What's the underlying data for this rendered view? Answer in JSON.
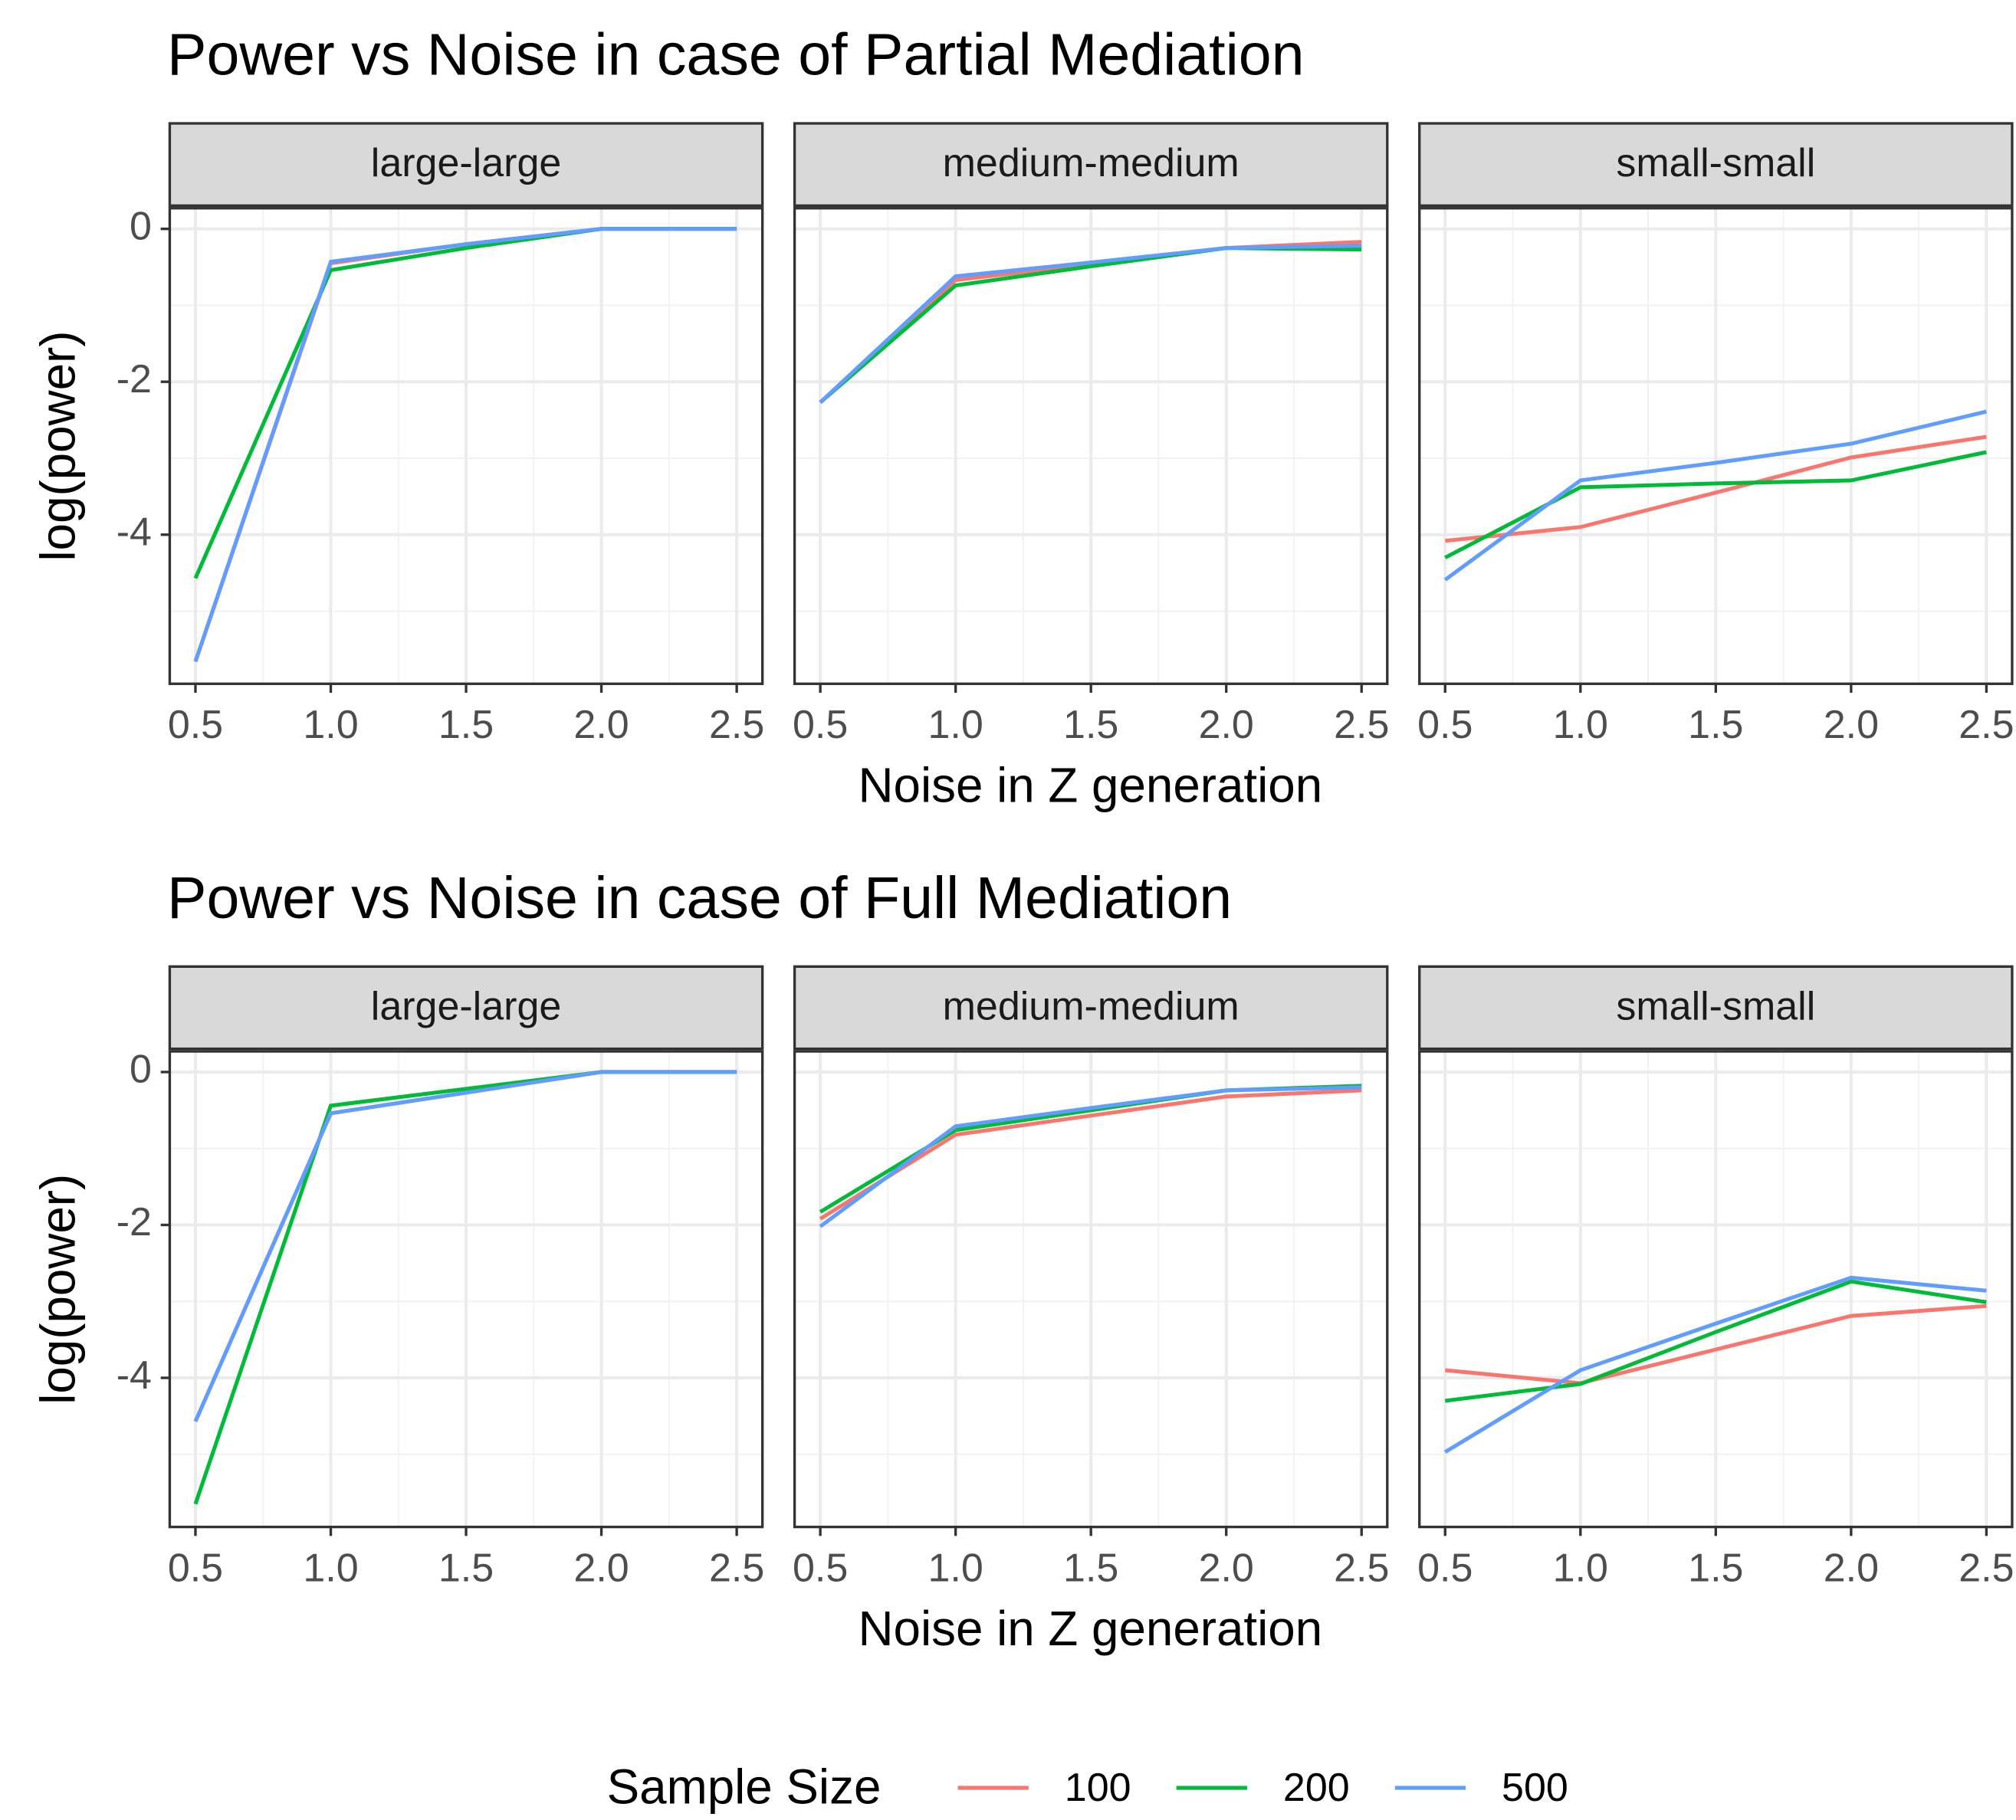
{
  "chart_data": [
    {
      "type": "line",
      "title": "Power vs Noise in case of Partial Mediation",
      "x_label": "Noise in Z generation",
      "y_label": "log(power)",
      "x": [
        0.5,
        1.0,
        1.5,
        2.0,
        2.5
      ],
      "xlim": [
        0.405,
        2.595
      ],
      "xticks": [
        0.5,
        {
          "value": 1,
          "label": "1.0"
        },
        1.5,
        {
          "value": 2,
          "label": "2.0"
        },
        2.5
      ],
      "ylim": [
        -5.95,
        0.27
      ],
      "yticks": [
        -4,
        -2,
        0
      ],
      "grid": true,
      "panels": [
        {
          "name": "large-large",
          "series": [
            {
              "name": "100",
              "color": "#F8766D",
              "values": [
                -5.66,
                -0.45,
                -0.2,
                0,
                0
              ]
            },
            {
              "name": "200",
              "color": "#00BA38",
              "values": [
                -4.57,
                -0.54,
                -0.25,
                0,
                0
              ]
            },
            {
              "name": "500",
              "color": "#619CFF",
              "values": [
                -5.66,
                -0.43,
                -0.2,
                0,
                0
              ]
            }
          ]
        },
        {
          "name": "medium-medium",
          "series": [
            {
              "name": "100",
              "color": "#F8766D",
              "values": [
                -2.27,
                -0.67,
                -0.46,
                -0.25,
                -0.17
              ]
            },
            {
              "name": "200",
              "color": "#00BA38",
              "values": [
                -2.27,
                -0.74,
                -0.49,
                -0.25,
                -0.27
              ]
            },
            {
              "name": "500",
              "color": "#619CFF",
              "values": [
                -2.27,
                -0.62,
                -0.44,
                -0.25,
                -0.22
              ]
            }
          ]
        },
        {
          "name": "small-small",
          "series": [
            {
              "name": "100",
              "color": "#F8766D",
              "values": [
                -4.08,
                -3.9,
                -3.45,
                -2.99,
                -2.72
              ]
            },
            {
              "name": "200",
              "color": "#00BA38",
              "values": [
                -4.3,
                -3.38,
                -3.33,
                -3.29,
                -2.92
              ]
            },
            {
              "name": "500",
              "color": "#619CFF",
              "values": [
                -4.59,
                -3.29,
                -3.06,
                -2.81,
                -2.39
              ]
            }
          ]
        }
      ]
    },
    {
      "type": "line",
      "title": "Power vs Noise in case of Full Mediation",
      "x_label": "Noise in Z generation",
      "y_label": "log(power)",
      "x": [
        0.5,
        1.0,
        1.5,
        2.0,
        2.5
      ],
      "xlim": [
        0.405,
        2.595
      ],
      "xticks": [
        0.5,
        {
          "value": 1,
          "label": "1.0"
        },
        1.5,
        {
          "value": 2,
          "label": "2.0"
        },
        2.5
      ],
      "ylim": [
        -5.95,
        0.27
      ],
      "yticks": [
        -4,
        -2,
        0
      ],
      "grid": true,
      "panels": [
        {
          "name": "large-large",
          "series": [
            {
              "name": "100",
              "color": "#F8766D",
              "values": [
                -4.57,
                -0.54,
                -0.27,
                0,
                0
              ]
            },
            {
              "name": "200",
              "color": "#00BA38",
              "values": [
                -5.65,
                -0.44,
                -0.22,
                0,
                0
              ]
            },
            {
              "name": "500",
              "color": "#619CFF",
              "values": [
                -4.57,
                -0.54,
                -0.27,
                0,
                0
              ]
            }
          ]
        },
        {
          "name": "medium-medium",
          "series": [
            {
              "name": "100",
              "color": "#F8766D",
              "values": [
                -1.92,
                -0.82,
                -0.57,
                -0.32,
                -0.24
              ]
            },
            {
              "name": "200",
              "color": "#00BA38",
              "values": [
                -1.83,
                -0.76,
                -0.5,
                -0.24,
                -0.18
              ]
            },
            {
              "name": "500",
              "color": "#619CFF",
              "values": [
                -2.02,
                -0.71,
                -0.47,
                -0.24,
                -0.2
              ]
            }
          ]
        },
        {
          "name": "small-small",
          "series": [
            {
              "name": "100",
              "color": "#F8766D",
              "values": [
                -3.9,
                -4.07,
                -3.63,
                -3.19,
                -3.06
              ]
            },
            {
              "name": "200",
              "color": "#00BA38",
              "values": [
                -4.3,
                -4.08,
                -3.4,
                -2.74,
                -3.01
              ]
            },
            {
              "name": "500",
              "color": "#619CFF",
              "values": [
                -4.97,
                -3.9,
                -3.29,
                -2.69,
                -2.86
              ]
            }
          ]
        }
      ]
    }
  ],
  "legend_title": "Sample Size"
}
